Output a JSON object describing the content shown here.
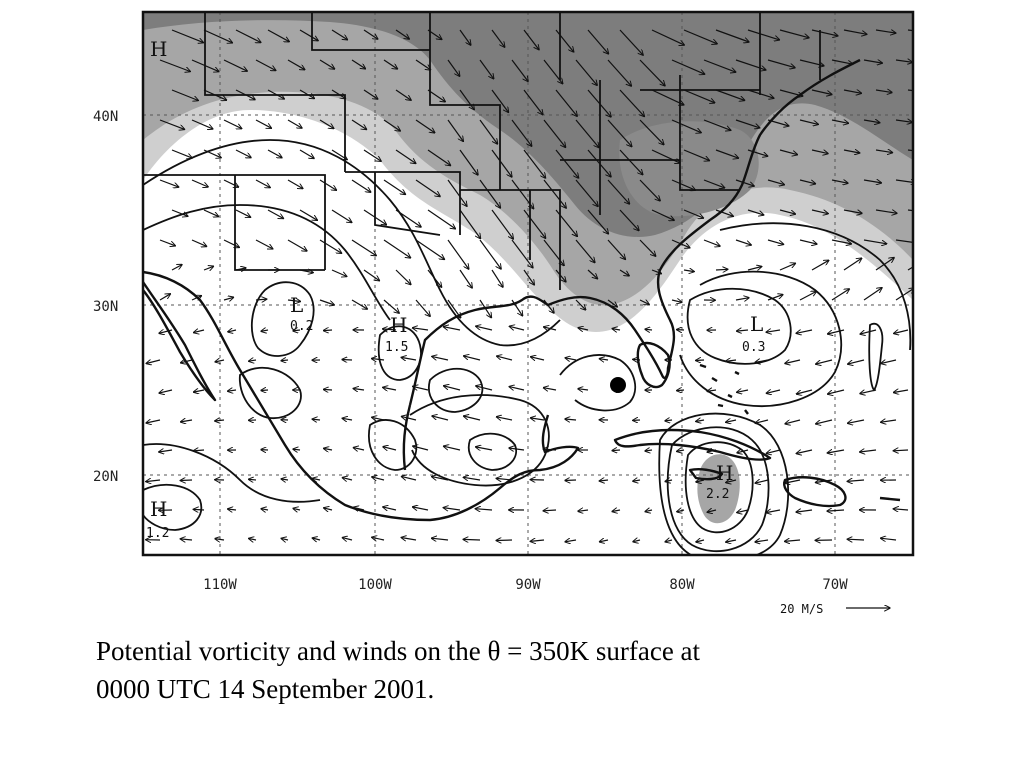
{
  "figure": {
    "lat_labels": [
      "40N",
      "30N",
      "20N"
    ],
    "lon_labels": [
      "110W",
      "100W",
      "90W",
      "80W",
      "70W"
    ],
    "scale_label": "20 M/S",
    "centers": [
      {
        "type": "H",
        "value": ""
      },
      {
        "type": "L",
        "value": "0.2"
      },
      {
        "type": "H",
        "value": "1.5"
      },
      {
        "type": "L",
        "value": "0.3"
      },
      {
        "type": "H",
        "value": "2.2"
      },
      {
        "type": "H",
        "value": "1.2"
      }
    ],
    "colors": {
      "dark_shade": "#7d7d7d",
      "mid_shade": "#a6a6a6",
      "light_shade": "#cfcfcf",
      "lines": "#111111"
    }
  },
  "caption": {
    "line1": "Potential vorticity and winds on the θ = 350K surface at",
    "line2": "0000 UTC 14 September 2001."
  }
}
